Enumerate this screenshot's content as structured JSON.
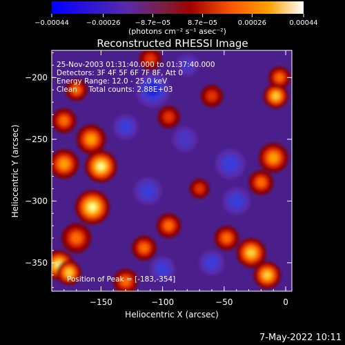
{
  "chart_data": {
    "type": "heatmap",
    "title": "Reconstructed RHESSI Image",
    "xlabel": "Heliocentric X (arcsec)",
    "ylabel": "Heliocentric Y (arcsec)",
    "xlim": [
      -190,
      5
    ],
    "ylim": [
      -373,
      -178
    ],
    "x_ticks": [
      -150,
      -100,
      -50,
      0
    ],
    "y_ticks": [
      -200,
      -250,
      -300,
      -350
    ],
    "x_tick_labels": [
      "−150",
      "−100",
      "−50",
      "0"
    ],
    "y_tick_labels": [
      "−200",
      "−250",
      "−300",
      "−350"
    ],
    "colorbar": {
      "range": [
        -0.00044,
        0.00044
      ],
      "ticks": [
        -0.00044,
        -0.00026,
        -8.7e-05,
        8.7e-05,
        0.00026,
        0.00044
      ],
      "tick_labels": [
        "−0.00044",
        "−0.00026",
        "−8.7e−05",
        "8.7e−05",
        "0.00026",
        "0.00044"
      ],
      "units": "(photons cm⁻² s⁻¹ asec⁻²)",
      "colors": [
        "#0000ff",
        "#5a2aa8",
        "#7a1f3f",
        "#a00000",
        "#ff5a00",
        "#ffa000",
        "#ffffff"
      ]
    },
    "annotations": [
      "25-Nov-2003 01:31:40.000 to 01:37:40.000",
      "Detectors: 3F 4F 5F 6F 7F 8F, Att 0",
      "Energy Range: 12.0 - 25.0 keV",
      "Clean     Total counts: 2.88E+03"
    ],
    "peak_label": "Position of Peak = [-183,-354]",
    "peak_position": [
      -183,
      -354
    ],
    "blobs": [
      {
        "x": -184,
        "y": -352,
        "level": 1.0,
        "r": 12
      },
      {
        "x": -176,
        "y": -358,
        "level": 0.85,
        "r": 10
      },
      {
        "x": -157,
        "y": -305,
        "level": 1.0,
        "r": 14
      },
      {
        "x": -150,
        "y": -272,
        "level": 0.95,
        "r": 13
      },
      {
        "x": -158,
        "y": -250,
        "level": 0.7,
        "r": 12
      },
      {
        "x": -180,
        "y": -270,
        "level": 0.65,
        "r": 12
      },
      {
        "x": -180,
        "y": -235,
        "level": 0.55,
        "r": 10
      },
      {
        "x": -170,
        "y": -210,
        "level": 0.5,
        "r": 9
      },
      {
        "x": -170,
        "y": -330,
        "level": 0.6,
        "r": 12
      },
      {
        "x": -8,
        "y": -215,
        "level": 0.85,
        "r": 10
      },
      {
        "x": -5,
        "y": -200,
        "level": 0.6,
        "r": 9
      },
      {
        "x": -10,
        "y": -265,
        "level": 0.75,
        "r": 12
      },
      {
        "x": -20,
        "y": -285,
        "level": 0.6,
        "r": 10
      },
      {
        "x": -28,
        "y": -342,
        "level": 0.9,
        "r": 12
      },
      {
        "x": -15,
        "y": -360,
        "level": 0.8,
        "r": 11
      },
      {
        "x": -48,
        "y": -330,
        "level": 0.55,
        "r": 10
      },
      {
        "x": -115,
        "y": -338,
        "level": 0.5,
        "r": 10
      },
      {
        "x": -95,
        "y": -320,
        "level": 0.5,
        "r": 10
      },
      {
        "x": -130,
        "y": -365,
        "level": 0.55,
        "r": 10
      },
      {
        "x": -95,
        "y": -232,
        "level": 0.45,
        "r": 9
      },
      {
        "x": -60,
        "y": -215,
        "level": 0.4,
        "r": 9
      },
      {
        "x": -110,
        "y": -185,
        "level": 0.4,
        "r": 9
      },
      {
        "x": -70,
        "y": -290,
        "level": 0.4,
        "r": 8
      },
      {
        "x": -108,
        "y": -210,
        "level": -0.55,
        "r": 14
      },
      {
        "x": -130,
        "y": -240,
        "level": -0.4,
        "r": 10
      },
      {
        "x": -82,
        "y": -250,
        "level": -0.35,
        "r": 10
      },
      {
        "x": -45,
        "y": -270,
        "level": -0.5,
        "r": 12
      },
      {
        "x": -40,
        "y": -300,
        "level": -0.45,
        "r": 11
      },
      {
        "x": -112,
        "y": -292,
        "level": -0.5,
        "r": 11
      },
      {
        "x": -100,
        "y": -355,
        "level": -0.4,
        "r": 10
      },
      {
        "x": -80,
        "y": -190,
        "level": -0.35,
        "r": 9
      },
      {
        "x": -60,
        "y": -350,
        "level": -0.4,
        "r": 10
      }
    ]
  },
  "footer": {
    "timestamp": "7-May-2022 10:11"
  }
}
